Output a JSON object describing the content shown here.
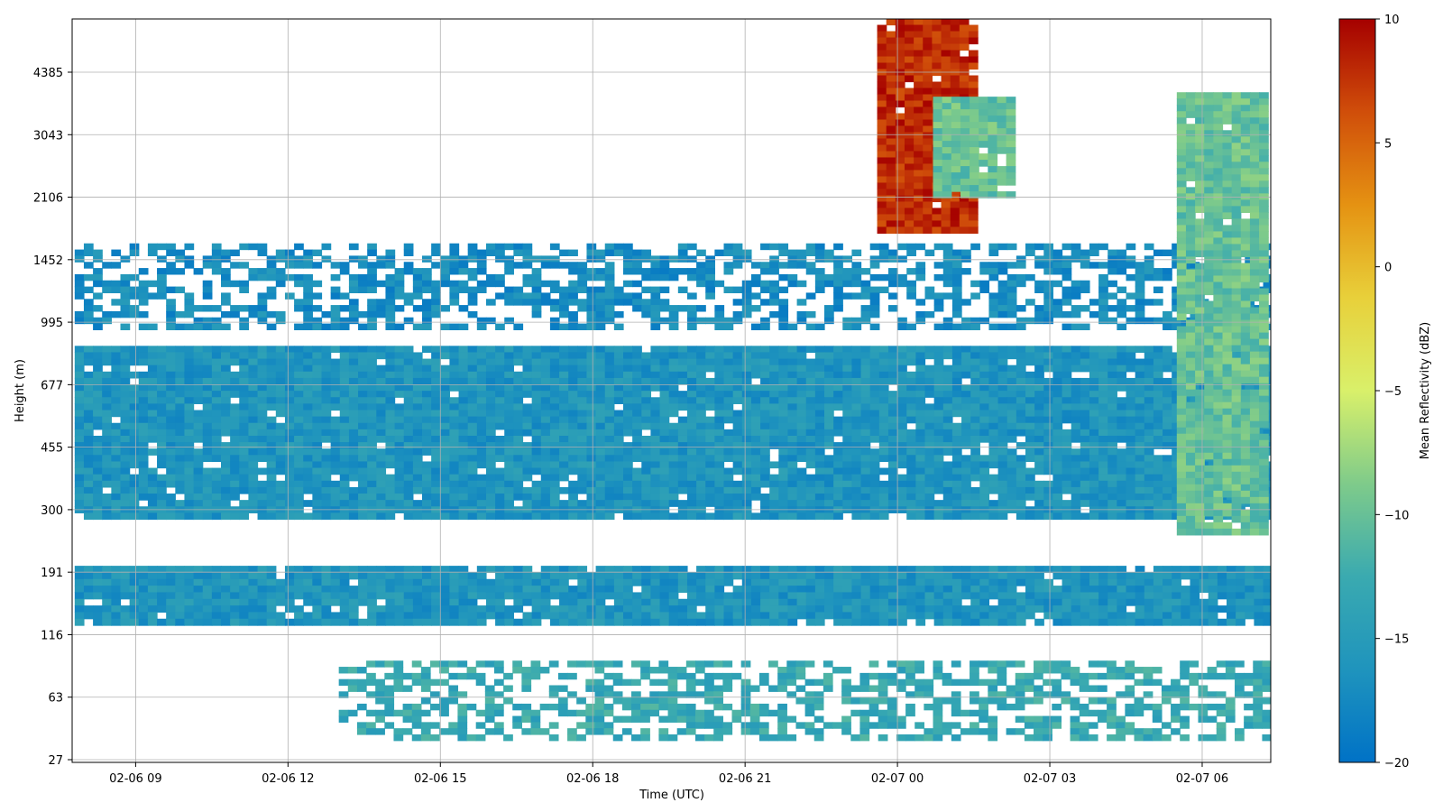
{
  "chart_data": {
    "type": "heatmap",
    "title": "",
    "xlabel": "Time (UTC)",
    "ylabel": "Height (m)",
    "x_ticks": [
      "02-06 09",
      "02-06 12",
      "02-06 15",
      "02-06 18",
      "02-06 21",
      "02-07 00",
      "02-07 03",
      "02-07 06"
    ],
    "y_ticks": [
      "27",
      "63",
      "116",
      "191",
      "300",
      "455",
      "677",
      "995",
      "1452",
      "2106",
      "3043",
      "4385"
    ],
    "x_range_hours": [
      -1.25,
      22.35
    ],
    "y_scale": "log",
    "grid": true,
    "colorbar": {
      "label": "Mean Reflectivity (dBZ)",
      "range": [
        -20,
        10
      ],
      "ticks": [
        "10",
        "5",
        "0",
        "−5",
        "−10",
        "−15",
        "−20"
      ],
      "colors": [
        "#0072c6",
        "#1f94bd",
        "#3aaab0",
        "#7fcb8a",
        "#d9f06a",
        "#e8d03a",
        "#e59212",
        "#d04e0a",
        "#a50000"
      ]
    },
    "features": [
      {
        "name": "main boundary layer band",
        "time_hours": [
          -1.2,
          22.3
        ],
        "height_m": [
          280,
          860
        ],
        "dbz": -16
      },
      {
        "name": "lower band",
        "time_hours": [
          -1.2,
          22.3
        ],
        "height_m": [
          125,
          200
        ],
        "dbz": -16
      },
      {
        "name": "near-surface echoes",
        "time_hours": [
          4.0,
          22.3
        ],
        "height_m": [
          35,
          90
        ],
        "dbz": -13
      },
      {
        "name": "upper scattered layer",
        "time_hours": [
          -1.2,
          22.3
        ],
        "height_m": [
          950,
          1600
        ],
        "dbz": -17
      },
      {
        "name": "intense precipitation column",
        "time_hours": [
          14.6,
          16.6
        ],
        "height_m": [
          1700,
          6000
        ],
        "dbz": 8
      },
      {
        "name": "elevated layer",
        "time_hours": [
          15.7,
          17.4
        ],
        "height_m": [
          2100,
          3800
        ],
        "dbz": -10
      },
      {
        "name": "tilted shaft",
        "time_hours": [
          20.5,
          22.3
        ],
        "height_m": [
          250,
          3900
        ],
        "dbz": -10
      }
    ]
  }
}
